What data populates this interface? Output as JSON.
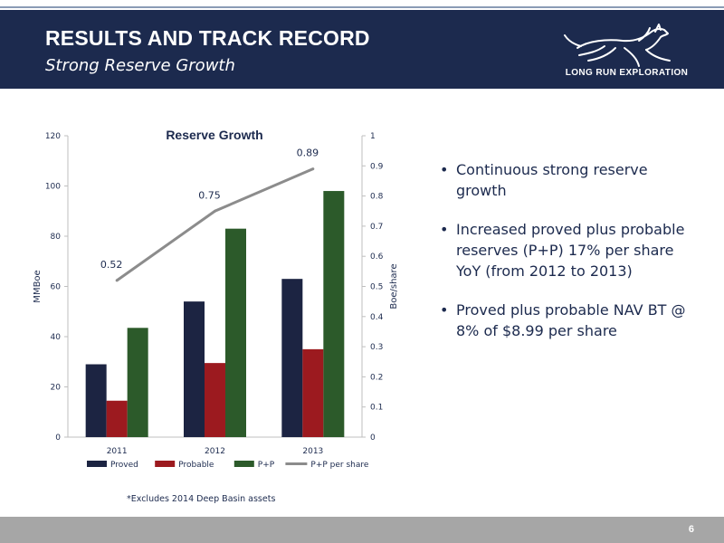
{
  "header": {
    "title": "RESULTS AND TRACK RECORD",
    "subtitle": "Strong Reserve Growth",
    "logo_text": "LONG RUN EXPLORATION",
    "logo_icon": "running-horse-icon",
    "background": "#1c2a4e"
  },
  "chart_data": {
    "type": "bar",
    "title": "Reserve Growth",
    "categories": [
      "2011",
      "2012",
      "2013"
    ],
    "xlabel": "",
    "ylabel": "MMBoe",
    "ylabel_right": "Boe/share",
    "ylim": [
      0,
      120
    ],
    "ylim_right": [
      0,
      1
    ],
    "yticks": [
      "0",
      "20",
      "40",
      "60",
      "80",
      "100",
      "120"
    ],
    "yticks_right": [
      "0",
      "0.1",
      "0.2",
      "0.3",
      "0.4",
      "0.5",
      "0.6",
      "0.7",
      "0.8",
      "0.9",
      "1"
    ],
    "series": [
      {
        "name": "Proved",
        "type": "bar",
        "axis": "left",
        "color": "#1c2442",
        "values": [
          29,
          54,
          63
        ]
      },
      {
        "name": "Probable",
        "type": "bar",
        "axis": "left",
        "color": "#9c1a1f",
        "values": [
          14.5,
          29.5,
          35
        ]
      },
      {
        "name": "P+P",
        "type": "bar",
        "axis": "left",
        "color": "#2c5a2a",
        "values": [
          43.5,
          83,
          98
        ]
      },
      {
        "name": "P+P per share",
        "type": "line",
        "axis": "right",
        "color": "#8c8c8c",
        "values": [
          0.52,
          0.75,
          0.89
        ],
        "labels": [
          "0.52",
          "0.75",
          "0.89"
        ]
      }
    ],
    "legend_position": "bottom",
    "grid": false
  },
  "bullets": [
    "Continuous strong reserve growth",
    "Increased proved plus probable reserves (P+P) 17% per share YoY (from 2012 to 2013)",
    "Proved plus probable NAV BT @ 8% of $8.99 per share"
  ],
  "footnote": "*Excludes 2014 Deep Basin assets",
  "footer": {
    "page_number": "6",
    "background": "#a6a6a6"
  }
}
